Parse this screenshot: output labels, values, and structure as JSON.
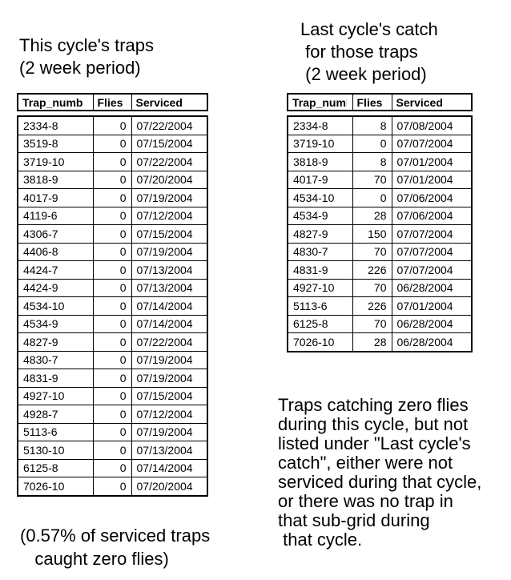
{
  "page": {
    "background_color": "#ffffff",
    "text_color": "#000000"
  },
  "left_section": {
    "title": "This cycle's traps\n(2 week period)",
    "table": {
      "headers": [
        "Trap_numb",
        "Flies",
        "Serviced"
      ],
      "rows": [
        [
          "2334-8",
          "0",
          "07/22/2004"
        ],
        [
          "3519-8",
          "0",
          "07/15/2004"
        ],
        [
          "3719-10",
          "0",
          "07/22/2004"
        ],
        [
          "3818-9",
          "0",
          "07/20/2004"
        ],
        [
          "4017-9",
          "0",
          "07/19/2004"
        ],
        [
          "4119-6",
          "0",
          "07/12/2004"
        ],
        [
          "4306-7",
          "0",
          "07/15/2004"
        ],
        [
          "4406-8",
          "0",
          "07/19/2004"
        ],
        [
          "4424-7",
          "0",
          "07/13/2004"
        ],
        [
          "4424-9",
          "0",
          "07/13/2004"
        ],
        [
          "4534-10",
          "0",
          "07/14/2004"
        ],
        [
          "4534-9",
          "0",
          "07/14/2004"
        ],
        [
          "4827-9",
          "0",
          "07/22/2004"
        ],
        [
          "4830-7",
          "0",
          "07/19/2004"
        ],
        [
          "4831-9",
          "0",
          "07/19/2004"
        ],
        [
          "4927-10",
          "0",
          "07/15/2004"
        ],
        [
          "4928-7",
          "0",
          "07/12/2004"
        ],
        [
          "5113-6",
          "0",
          "07/19/2004"
        ],
        [
          "5130-10",
          "0",
          "07/13/2004"
        ],
        [
          "6125-8",
          "0",
          "07/14/2004"
        ],
        [
          "7026-10",
          "0",
          "07/20/2004"
        ]
      ]
    },
    "caption": "(0.57% of serviced traps\n   caught zero flies)"
  },
  "right_section": {
    "title": "Last cycle's catch\n for those traps\n (2 week period)",
    "table": {
      "headers": [
        "Trap_numb",
        "Flies",
        "Serviced"
      ],
      "rows": [
        [
          "2334-8",
          "8",
          "07/08/2004"
        ],
        [
          "3719-10",
          "0",
          "07/07/2004"
        ],
        [
          "3818-9",
          "8",
          "07/01/2004"
        ],
        [
          "4017-9",
          "70",
          "07/01/2004"
        ],
        [
          "4534-10",
          "0",
          "07/06/2004"
        ],
        [
          "4534-9",
          "28",
          "07/06/2004"
        ],
        [
          "4827-9",
          "150",
          "07/07/2004"
        ],
        [
          "4830-7",
          "70",
          "07/07/2004"
        ],
        [
          "4831-9",
          "226",
          "07/07/2004"
        ],
        [
          "4927-10",
          "70",
          "06/28/2004"
        ],
        [
          "5113-6",
          "226",
          "07/01/2004"
        ],
        [
          "6125-8",
          "70",
          "06/28/2004"
        ],
        [
          "7026-10",
          "28",
          "06/28/2004"
        ]
      ]
    },
    "note": "Traps catching zero flies\nduring this cycle, but not\nlisted under \"Last cycle's\ncatch\", either were not\nserviced during that cycle,\nor there was no trap in\nthat sub-grid during\n that cycle."
  }
}
